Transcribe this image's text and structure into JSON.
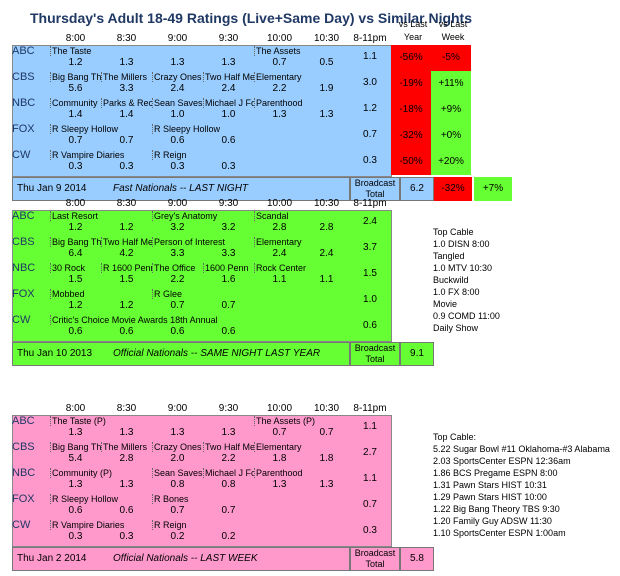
{
  "title": "Thursday's Adult 18-49 Ratings (Live+Same Day) vs Similar Nights",
  "headers": [
    "8:00",
    "8:30",
    "9:00",
    "9:30",
    "10:00",
    "10:30",
    "8-11pm"
  ],
  "compare_headers": [
    "vs Last Year",
    "vs Last Week"
  ],
  "colors": {
    "blue": "#99CCFF",
    "green": "#66FF33",
    "pink": "#FF99CC",
    "red_cell": "#FF0000",
    "title": "#1F3864"
  },
  "blocks": [
    {
      "id": "current",
      "color": "blue",
      "networks": [
        {
          "name": "ABC",
          "shows": [
            {
              "t": "The Taste",
              "slot": 0,
              "span": 4
            },
            {
              "t": "The Assets",
              "slot": 4,
              "span": 2
            }
          ],
          "ratings": [
            "1.2",
            "1.3",
            "1.3",
            "1.3",
            "0.7",
            "0.5"
          ],
          "total": "1.1",
          "vs_year": "-56%",
          "vs_week": "-5%"
        },
        {
          "name": "CBS",
          "shows": [
            {
              "t": "Big Bang The",
              "slot": 0,
              "span": 1
            },
            {
              "t": "The Millers",
              "slot": 1,
              "span": 1
            },
            {
              "t": "Crazy Ones",
              "slot": 2,
              "span": 1
            },
            {
              "t": "Two Half Mer",
              "slot": 3,
              "span": 1
            },
            {
              "t": "Elementary",
              "slot": 4,
              "span": 2
            }
          ],
          "ratings": [
            "5.6",
            "3.3",
            "2.4",
            "2.4",
            "2.2",
            "1.9"
          ],
          "total": "3.0",
          "vs_year": "-19%",
          "vs_week": "+11%"
        },
        {
          "name": "NBC",
          "shows": [
            {
              "t": "Community",
              "slot": 0,
              "span": 1
            },
            {
              "t": "Parks & Recre",
              "slot": 1,
              "span": 1
            },
            {
              "t": "Sean Saves t",
              "slot": 2,
              "span": 1
            },
            {
              "t": "Michael J Fox",
              "slot": 3,
              "span": 1
            },
            {
              "t": "Parenthood",
              "slot": 4,
              "span": 2
            }
          ],
          "ratings": [
            "1.4",
            "1.4",
            "1.0",
            "1.0",
            "1.3",
            "1.3"
          ],
          "total": "1.2",
          "vs_year": "-18%",
          "vs_week": "+9%"
        },
        {
          "name": "FOX",
          "shows": [
            {
              "t": "R Sleepy Hollow",
              "slot": 0,
              "span": 2
            },
            {
              "t": "R Sleepy Hollow",
              "slot": 2,
              "span": 2
            }
          ],
          "ratings": [
            "0.7",
            "0.7",
            "0.6",
            "0.6",
            "",
            ""
          ],
          "total": "0.7",
          "vs_year": "-32%",
          "vs_week": "+0%"
        },
        {
          "name": "CW",
          "shows": [
            {
              "t": "R Vampire Diaries",
              "slot": 0,
              "span": 2
            },
            {
              "t": "R Reign",
              "slot": 2,
              "span": 2
            }
          ],
          "ratings": [
            "0.3",
            "0.3",
            "0.3",
            "0.3",
            "",
            ""
          ],
          "total": "0.3",
          "vs_year": "-50%",
          "vs_week": "+20%"
        }
      ],
      "footer": {
        "date": "Thu Jan 9 2014",
        "label": "Fast Nationals -- LAST NIGHT",
        "broadcast": "Broadcast",
        "total_word": "Total",
        "total": "6.2",
        "vs_year": "-32%",
        "vs_week": "+7%"
      }
    },
    {
      "id": "lastyear",
      "color": "green",
      "networks": [
        {
          "name": "ABC",
          "shows": [
            {
              "t": "Last Resort",
              "slot": 0,
              "span": 2
            },
            {
              "t": "Grey's Anatomy",
              "slot": 2,
              "span": 2
            },
            {
              "t": "Scandal",
              "slot": 4,
              "span": 2
            }
          ],
          "ratings": [
            "1.2",
            "1.2",
            "3.2",
            "3.2",
            "2.8",
            "2.8"
          ],
          "total": "2.4"
        },
        {
          "name": "CBS",
          "shows": [
            {
              "t": "Big Bang The",
              "slot": 0,
              "span": 1
            },
            {
              "t": "Two Half Mer",
              "slot": 1,
              "span": 1
            },
            {
              "t": "Person of Interest",
              "slot": 2,
              "span": 2
            },
            {
              "t": "Elementary",
              "slot": 4,
              "span": 2
            }
          ],
          "ratings": [
            "6.4",
            "4.2",
            "3.3",
            "3.3",
            "2.4",
            "2.4"
          ],
          "total": "3.7"
        },
        {
          "name": "NBC",
          "shows": [
            {
              "t": "30 Rock",
              "slot": 0,
              "span": 1
            },
            {
              "t": "R 1600 Penn",
              "slot": 1,
              "span": 1
            },
            {
              "t": "The Office",
              "slot": 2,
              "span": 1
            },
            {
              "t": "1600 Penn",
              "slot": 3,
              "span": 1
            },
            {
              "t": "Rock Center",
              "slot": 4,
              "span": 2
            }
          ],
          "ratings": [
            "1.5",
            "1.5",
            "2.2",
            "1.6",
            "1.1",
            "1.1"
          ],
          "total": "1.5"
        },
        {
          "name": "FOX",
          "shows": [
            {
              "t": "Mobbed",
              "slot": 0,
              "span": 2
            },
            {
              "t": "R Glee",
              "slot": 2,
              "span": 2
            }
          ],
          "ratings": [
            "1.2",
            "1.2",
            "0.7",
            "0.7",
            "",
            ""
          ],
          "total": "1.0"
        },
        {
          "name": "CW",
          "shows": [
            {
              "t": "Critic's Choice Movie Awards 18th Annual",
              "slot": 0,
              "span": 4
            }
          ],
          "ratings": [
            "0.6",
            "0.6",
            "0.6",
            "0.6",
            "",
            ""
          ],
          "total": "0.6"
        }
      ],
      "footer": {
        "date": "Thu Jan 10 2013",
        "label": "Official Nationals -- SAME NIGHT LAST YEAR",
        "broadcast": "Broadcast",
        "total_word": "Total",
        "total": "9.1"
      },
      "side": [
        "Top Cable",
        "1.0 DISN 8:00",
        "Tangled",
        "1.0 MTV 10:30",
        "Buckwild",
        "1.0 FX 8:00",
        "Movie",
        "0.9 COMD 11:00",
        "Daily Show"
      ]
    },
    {
      "id": "lastweek",
      "color": "pink",
      "networks": [
        {
          "name": "ABC",
          "shows": [
            {
              "t": "The Taste (P)",
              "slot": 0,
              "span": 4
            },
            {
              "t": "The Assets (P)",
              "slot": 4,
              "span": 2
            }
          ],
          "ratings": [
            "1.3",
            "1.3",
            "1.3",
            "1.3",
            "0.7",
            "0.7"
          ],
          "total": "1.1"
        },
        {
          "name": "CBS",
          "shows": [
            {
              "t": "Big Bang The",
              "slot": 0,
              "span": 1
            },
            {
              "t": "The Millers",
              "slot": 1,
              "span": 1
            },
            {
              "t": "Crazy Ones",
              "slot": 2,
              "span": 1
            },
            {
              "t": "Two Half Mer",
              "slot": 3,
              "span": 1
            },
            {
              "t": "Elementary",
              "slot": 4,
              "span": 2
            }
          ],
          "ratings": [
            "5.4",
            "2.8",
            "2.0",
            "2.2",
            "1.8",
            "1.8"
          ],
          "total": "2.7"
        },
        {
          "name": "NBC",
          "shows": [
            {
              "t": "Community (P)",
              "slot": 0,
              "span": 2
            },
            {
              "t": "Sean Saves t",
              "slot": 2,
              "span": 1
            },
            {
              "t": "Michael J Fox",
              "slot": 3,
              "span": 1
            },
            {
              "t": "Parenthood",
              "slot": 4,
              "span": 2
            }
          ],
          "ratings": [
            "1.3",
            "1.3",
            "0.8",
            "0.8",
            "1.3",
            "1.3"
          ],
          "total": "1.1"
        },
        {
          "name": "FOX",
          "shows": [
            {
              "t": "R Sleepy Hollow",
              "slot": 0,
              "span": 2
            },
            {
              "t": "R Bones",
              "slot": 2,
              "span": 2
            }
          ],
          "ratings": [
            "0.6",
            "0.6",
            "0.7",
            "0.7",
            "",
            ""
          ],
          "total": "0.7"
        },
        {
          "name": "CW",
          "shows": [
            {
              "t": "R Vampire Diaries",
              "slot": 0,
              "span": 2
            },
            {
              "t": "R Reign",
              "slot": 2,
              "span": 2
            }
          ],
          "ratings": [
            "0.3",
            "0.3",
            "0.2",
            "0.2",
            "",
            ""
          ],
          "total": "0.3"
        }
      ],
      "footer": {
        "date": "Thu Jan 2 2014",
        "label": "Official Nationals -- LAST WEEK",
        "broadcast": "Broadcast",
        "total_word": "Total",
        "total": "5.8"
      },
      "side": [
        "Top Cable:",
        "5.22 Sugar Bowl #11 Oklahoma-#3 Alabama",
        "2.03 SportsCenter ESPN 12:36am",
        "1.86 BCS Pregame ESPN 8:00",
        "1.31 Pawn Stars HIST 10:31",
        "1.29 Pawn Stars HIST 10:00",
        "1.22 Big Bang Theory TBS 9:30",
        "1.20 Family Guy ADSW 11:30",
        "1.10 SportsCenter ESPN 1:00am"
      ]
    }
  ]
}
